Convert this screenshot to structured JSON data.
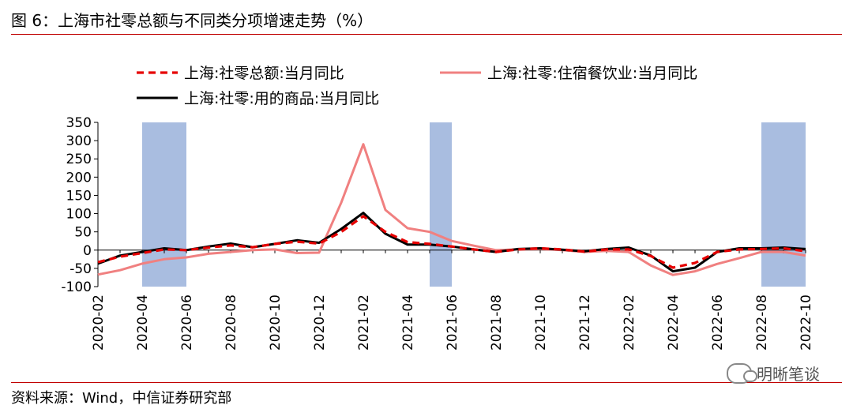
{
  "header": {
    "title": "图 6：上海市社零总额与不同类分项增速走势（%）"
  },
  "footer": {
    "source": "资料来源：Wind，中信证券研究部"
  },
  "watermark": {
    "text": "明晰笔谈",
    "icon": "wechat-icon"
  },
  "colors": {
    "total": "#e60000",
    "catering": "#f08080",
    "goods": "#000000",
    "shade": "#a9bde0",
    "rule": "#c00000"
  },
  "chart_data": {
    "type": "line",
    "title": "",
    "xlabel": "",
    "ylabel": "",
    "ylim": [
      -100,
      350
    ],
    "yticks": [
      -100,
      -50,
      0,
      50,
      100,
      150,
      200,
      250,
      300,
      350
    ],
    "x": [
      "2020-02",
      "2020-03",
      "2020-04",
      "2020-05",
      "2020-06",
      "2020-07",
      "2020-08",
      "2020-09",
      "2020-10",
      "2020-11",
      "2020-12",
      "2021-01",
      "2021-02",
      "2021-03",
      "2021-04",
      "2021-05",
      "2021-06",
      "2021-07",
      "2021-08",
      "2021-09",
      "2021-10",
      "2021-11",
      "2021-12",
      "2022-01",
      "2022-02",
      "2022-03",
      "2022-04",
      "2022-05",
      "2022-06",
      "2022-07",
      "2022-08",
      "2022-09",
      "2022-10"
    ],
    "xtick_labels": [
      "2020-02",
      "2020-04",
      "2020-06",
      "2020-08",
      "2020-10",
      "2020-12",
      "2021-02",
      "2021-04",
      "2021-06",
      "2021-08",
      "2021-10",
      "2021-12",
      "2022-02",
      "2022-04",
      "2022-06",
      "2022-08",
      "2022-10"
    ],
    "shaded_ranges": [
      [
        "2020-04",
        "2020-06"
      ],
      [
        "2021-05",
        "2021-06"
      ],
      [
        "2022-08",
        "2022-10"
      ]
    ],
    "legend_placement": "top",
    "series": [
      {
        "name": "上海:社零总额:当月同比",
        "style": "dashed",
        "values": [
          -33,
          -18,
          -8,
          2,
          0,
          7,
          13,
          8,
          17,
          23,
          18,
          50,
          93,
          50,
          22,
          17,
          10,
          2,
          -5,
          2,
          5,
          2,
          -4,
          2,
          2,
          -16,
          -48,
          -35,
          -5,
          2,
          3,
          5,
          -3
        ]
      },
      {
        "name": "上海:社零:住宿餐饮业:当月同比",
        "style": "solid",
        "values": [
          -67,
          -55,
          -37,
          -25,
          -20,
          -10,
          -5,
          0,
          2,
          -8,
          -7,
          130,
          290,
          110,
          60,
          50,
          25,
          12,
          0,
          2,
          3,
          0,
          -5,
          -2,
          -5,
          -42,
          -68,
          -58,
          -38,
          -22,
          -5,
          -5,
          -15
        ]
      },
      {
        "name": "上海:社零:用的商品:当月同比",
        "style": "solid",
        "values": [
          -37,
          -15,
          -5,
          5,
          0,
          10,
          18,
          8,
          17,
          27,
          20,
          58,
          102,
          45,
          15,
          15,
          10,
          2,
          -5,
          3,
          5,
          1,
          -3,
          3,
          7,
          -15,
          -58,
          -48,
          -5,
          5,
          5,
          7,
          3
        ]
      }
    ]
  }
}
